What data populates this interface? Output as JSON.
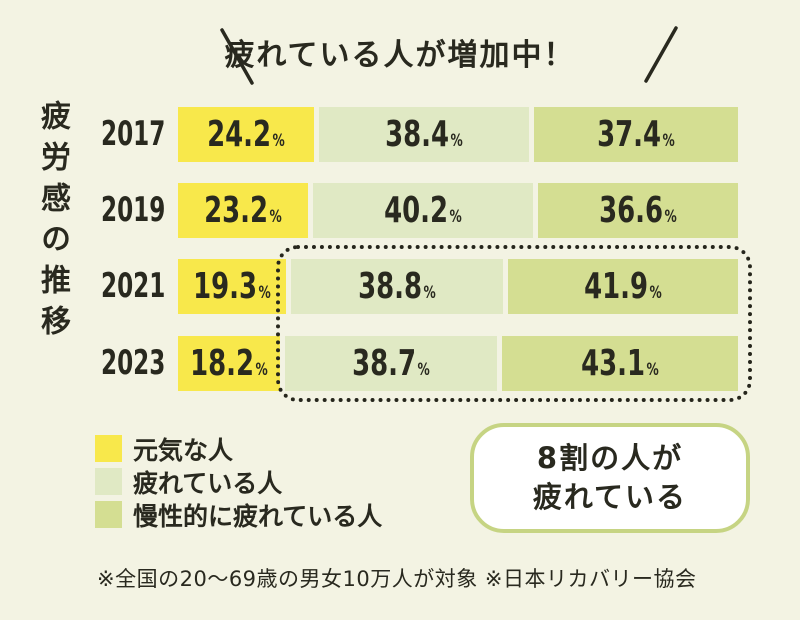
{
  "title": "疲れている人が増加中！",
  "y_axis_label": "疲労感の推移",
  "chart_data": {
    "type": "bar",
    "subtype": "horizontal-stacked-100pct",
    "title": "疲れている人が増加中！",
    "ylabel": "疲労感の推移",
    "unit": "%",
    "xlim": [
      0,
      100
    ],
    "categories": [
      "2017",
      "2019",
      "2021",
      "2023"
    ],
    "series": [
      {
        "name": "元気な人",
        "color": "#f8e84b",
        "values": [
          24.2,
          23.2,
          19.3,
          18.2
        ]
      },
      {
        "name": "疲れている人",
        "color": "#e0e9c4",
        "values": [
          38.4,
          40.2,
          38.8,
          38.7
        ]
      },
      {
        "name": "慢性的に疲れている人",
        "color": "#d4de92",
        "values": [
          37.4,
          36.6,
          41.9,
          43.1
        ]
      }
    ],
    "legend_position": "bottom-left",
    "grid": false,
    "highlighted_categories": [
      "2021",
      "2023"
    ],
    "highlighted_series": [
      "疲れている人",
      "慢性的に疲れている人"
    ]
  },
  "callout": {
    "line1": "8割の人が",
    "line2": "疲れている"
  },
  "footnote": "※全国の20〜69歳の男女10万人が対象 ※日本リカバリー協会",
  "colors": {
    "background": "#f3f3e3",
    "ink": "#29291f",
    "callout_border": "#c6d483",
    "callout_fill": "#ffffff"
  }
}
